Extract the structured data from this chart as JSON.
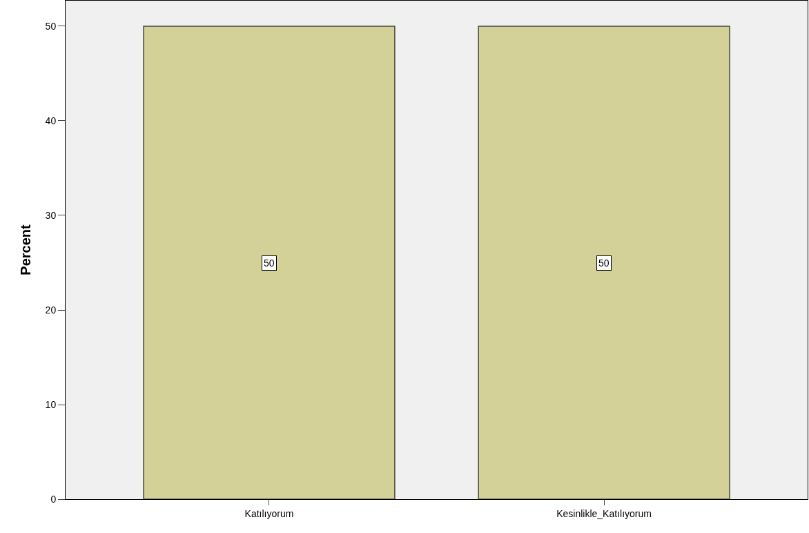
{
  "chart_data": {
    "type": "bar",
    "ylabel": "Percent",
    "categories": [
      "Katılıyorum",
      "Kesinlikle_Katılıyorum"
    ],
    "values": [
      50,
      50
    ],
    "color": "#d3d098",
    "ylim": [
      0,
      52.7
    ],
    "yticks": [
      0,
      10,
      20,
      30,
      40,
      50
    ],
    "data_labels": true,
    "grid": false,
    "legend": false
  }
}
